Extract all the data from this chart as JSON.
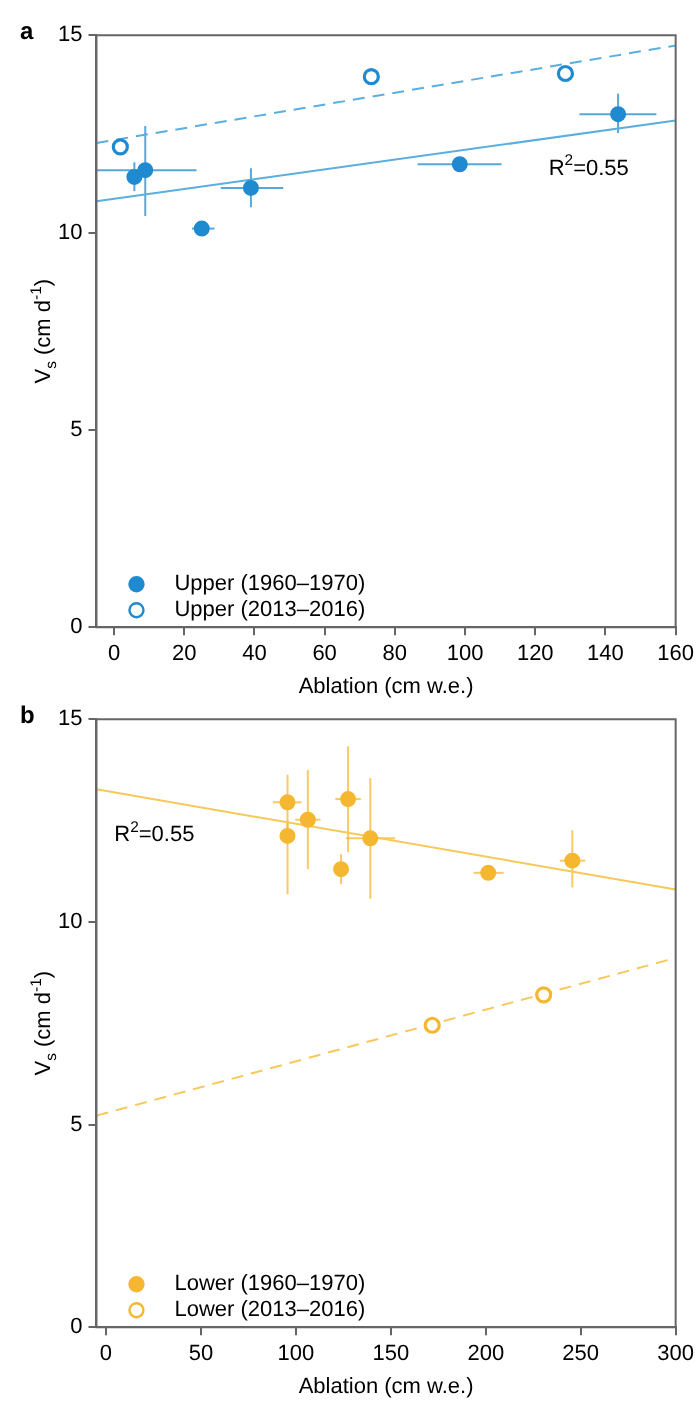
{
  "chart_data": [
    {
      "type": "scatter",
      "title": "a",
      "xlabel": "Ablation (cm w.e.)",
      "ylabel": "V$_{s}$ (cm d$^{-1}$)",
      "xlim": [
        -5,
        160
      ],
      "xticks": [
        0,
        20,
        40,
        60,
        80,
        100,
        120,
        140,
        160
      ],
      "ylim": [
        0,
        15
      ],
      "yticks": [
        0,
        5,
        10,
        15
      ],
      "grid": false,
      "legend": "bottom left",
      "annotations": [
        "R$^{2}$=0.55"
      ],
      "series": [
        {
          "name": "Upper (1960–1970)",
          "marker": "circle",
          "color": "#1f8ad0",
          "x": [
            5.8,
            8.9,
            25,
            39,
            98.5,
            143.6
          ],
          "values": [
            11.41,
            11.58,
            10.1,
            11.13,
            11.73,
            13.0
          ],
          "errors": [
            [
              11.05,
              11.78
            ],
            [
              10.42,
              12.7
            ],
            null,
            [
              10.64,
              11.63
            ],
            null,
            [
              12.52,
              13.52
            ]
          ],
          "xerrors": [
            null,
            [
              -5,
              23.5
            ],
            [
              22.2,
              28.6
            ],
            [
              30.4,
              48.2
            ],
            [
              86.5,
              110.4
            ],
            [
              132.6,
              154.5
            ]
          ]
        },
        {
          "name": "Upper (2013–2016)",
          "marker": "circle",
          "color": "#1f8ad0",
          "x": [
            1.8,
            73.3,
            128.6
          ],
          "values": [
            12.17,
            13.95,
            14.03
          ]
        },
        {
          "type": "line",
          "color": "#5aaee0",
          "line_style": "solid",
          "x": [
            -5,
            160
          ],
          "values": [
            10.79,
            12.84
          ]
        },
        {
          "type": "line",
          "color": "#5aaee0",
          "line_style": "dashed",
          "x": [
            -5,
            160
          ],
          "values": [
            12.27,
            14.74
          ]
        }
      ]
    },
    {
      "type": "scatter",
      "title": "b",
      "xlabel": "Ablation (cm w.e.)",
      "ylabel": "V$_{s}$ (cm d$^{-1}$)",
      "xlim": [
        -5,
        300
      ],
      "xticks": [
        0,
        50,
        100,
        150,
        200,
        250,
        300
      ],
      "ylim": [
        0,
        15
      ],
      "yticks": [
        0,
        5,
        10,
        15
      ],
      "grid": false,
      "legend": "bottom left",
      "annotations": [
        "R$^{2}$=0.55"
      ],
      "series": [
        {
          "name": "Lower (1960–1970)",
          "marker": "circle",
          "color": "#f5b731",
          "x": [
            95.6,
            95.6,
            106.3,
            123.8,
            127.5,
            139.2,
            201.3,
            245.6
          ],
          "values": [
            12.95,
            12.12,
            12.52,
            11.3,
            13.03,
            12.06,
            11.21,
            11.51
          ],
          "errors": [
            [
              12.2,
              13.63
            ],
            [
              10.68,
              12.5
            ],
            [
              11.3,
              13.75
            ],
            [
              10.93,
              11.67
            ],
            [
              11.72,
              14.33
            ],
            [
              10.57,
              13.55
            ],
            null,
            [
              10.85,
              12.26
            ]
          ],
          "xerrors": [
            [
              87.9,
              103
            ],
            null,
            [
              99.7,
              113
            ],
            null,
            [
              120.8,
              134.2
            ],
            [
              126.4,
              152.3
            ],
            [
              193.6,
              209.4
            ],
            [
              239,
              252.4
            ]
          ]
        },
        {
          "name": "Lower (2013–2016)",
          "marker": "circle",
          "color": "#f5b731",
          "x": [
            171.8,
            230.5
          ],
          "values": [
            7.45,
            8.2
          ]
        },
        {
          "type": "line",
          "color": "#f7c85a",
          "line_style": "solid",
          "x": [
            -5,
            300
          ],
          "values": [
            13.27,
            10.8
          ]
        },
        {
          "type": "line",
          "color": "#f7c85a",
          "line_style": "dashed",
          "x": [
            -5,
            300
          ],
          "values": [
            5.22,
            9.11
          ]
        }
      ]
    }
  ]
}
